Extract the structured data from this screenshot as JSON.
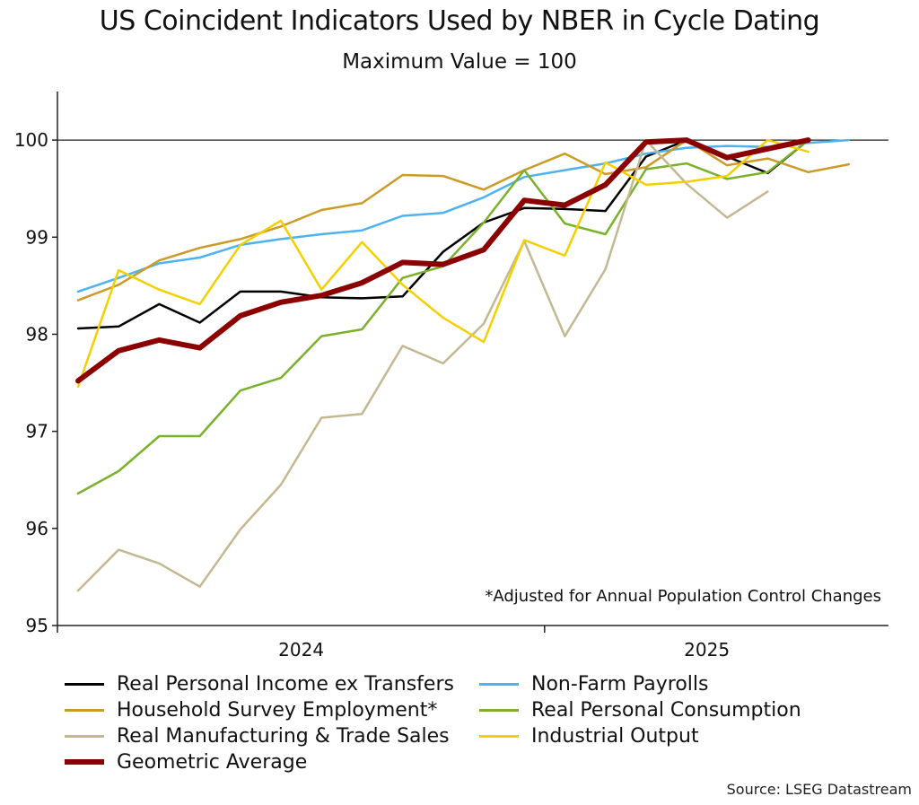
{
  "chart_data": {
    "type": "line",
    "title": "US Coincident Indicators Used by NBER in Cycle Dating",
    "subtitle": "Maximum Value = 100",
    "ylim": [
      95,
      100.5
    ],
    "yticks": [
      95,
      96,
      97,
      98,
      99,
      100
    ],
    "reference_line": 100,
    "x_labels": [
      {
        "label": "2024",
        "index": 5.5
      },
      {
        "label": "2025",
        "index": 15.5
      }
    ],
    "x_dividers": [
      11.5
    ],
    "annotation": "*Adjusted for Annual Population Control Changes",
    "series": [
      {
        "name": "Real Personal Income ex Transfers",
        "color": "#000000",
        "width": 2.5,
        "values": [
          98.06,
          98.08,
          98.31,
          98.12,
          98.44,
          98.44,
          98.38,
          98.37,
          98.39,
          98.85,
          99.15,
          99.3,
          99.29,
          99.27,
          99.83,
          100.0,
          99.83,
          99.66,
          100.0
        ]
      },
      {
        "name": "Non-Farm Payrolls",
        "color": "#4db3ef",
        "width": 2.5,
        "values": [
          98.44,
          98.58,
          98.73,
          98.79,
          98.92,
          98.98,
          99.03,
          99.07,
          99.22,
          99.25,
          99.41,
          99.62,
          99.69,
          99.76,
          99.86,
          99.92,
          99.94,
          99.93,
          99.97,
          100.0
        ]
      },
      {
        "name": "Household Survey Employment*",
        "color": "#cc9a27",
        "width": 2.5,
        "values": [
          98.35,
          98.51,
          98.76,
          98.89,
          98.98,
          99.11,
          99.28,
          99.35,
          99.64,
          99.63,
          99.49,
          99.69,
          99.86,
          99.65,
          99.72,
          100.0,
          99.74,
          99.81,
          99.67,
          99.75
        ]
      },
      {
        "name": "Real Personal Consumption",
        "color": "#7ab12a",
        "width": 2.5,
        "values": [
          96.36,
          96.59,
          96.95,
          96.95,
          97.42,
          97.55,
          97.98,
          98.05,
          98.58,
          98.7,
          99.15,
          99.69,
          99.14,
          99.03,
          99.7,
          99.76,
          99.6,
          99.67,
          100.0
        ]
      },
      {
        "name": "Real Manufacturing & Trade Sales",
        "color": "#c3b891",
        "width": 2.5,
        "values": [
          95.36,
          95.78,
          95.64,
          95.4,
          95.99,
          96.45,
          97.14,
          97.18,
          97.88,
          97.7,
          98.11,
          98.96,
          97.98,
          98.67,
          100.0,
          99.55,
          99.2,
          99.47
        ]
      },
      {
        "name": "Industrial Output",
        "color": "#f4d000",
        "width": 2.5,
        "values": [
          97.46,
          98.66,
          98.46,
          98.31,
          98.92,
          99.17,
          98.46,
          98.95,
          98.51,
          98.17,
          97.92,
          98.97,
          98.81,
          99.77,
          99.54,
          99.57,
          99.63,
          100.0,
          99.88
        ]
      },
      {
        "name": "Geometric Average",
        "color": "#8b0000",
        "width": 6,
        "values": [
          97.52,
          97.83,
          97.94,
          97.86,
          98.19,
          98.33,
          98.4,
          98.53,
          98.74,
          98.72,
          98.87,
          99.38,
          99.33,
          99.54,
          99.98,
          100.0,
          99.82,
          99.91,
          100.0
        ]
      }
    ]
  },
  "legend": {
    "items": [
      {
        "label": "Real Personal Income ex Transfers",
        "color": "#000000"
      },
      {
        "label": "Non-Farm Payrolls",
        "color": "#4db3ef"
      },
      {
        "label": "Household Survey Employment*",
        "color": "#cc9a27"
      },
      {
        "label": "Real Personal Consumption",
        "color": "#7ab12a"
      },
      {
        "label": "Real Manufacturing & Trade Sales",
        "color": "#c3b891"
      },
      {
        "label": "Industrial Output",
        "color": "#f4d000"
      },
      {
        "label": "Geometric Average",
        "color": "#8b0000"
      }
    ]
  },
  "source": "Source: LSEG Datastream"
}
